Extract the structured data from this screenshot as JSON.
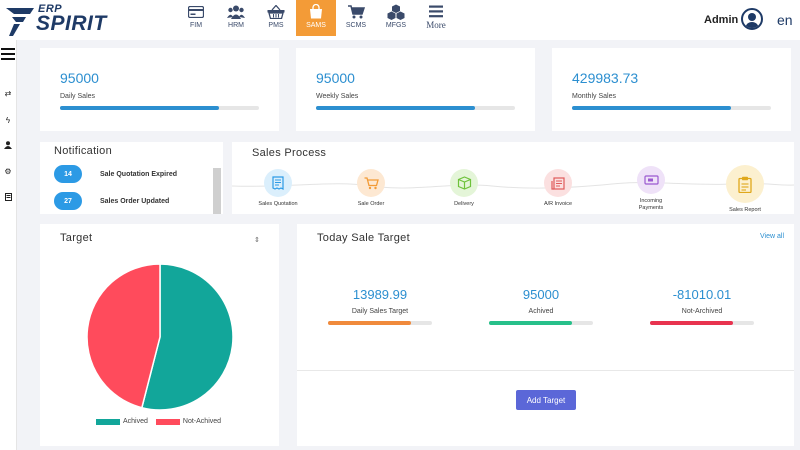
{
  "brand": {
    "erp": "ERP",
    "name": "SPIRIT"
  },
  "nav": [
    {
      "label": "FIM",
      "icon": "card-icon"
    },
    {
      "label": "HRM",
      "icon": "users-icon"
    },
    {
      "label": "PMS",
      "icon": "basket-icon"
    },
    {
      "label": "SAMS",
      "icon": "bag-icon",
      "active": true
    },
    {
      "label": "SCMS",
      "icon": "cart-icon"
    },
    {
      "label": "MFGS",
      "icon": "boxes-icon"
    },
    {
      "label": "More",
      "icon": "menu-icon"
    }
  ],
  "header": {
    "user": "Admin",
    "language": "en"
  },
  "stats": [
    {
      "value": "95000",
      "label": "Daily Sales",
      "progress": 0.8
    },
    {
      "value": "95000",
      "label": "Weekly Sales",
      "progress": 0.8
    },
    {
      "value": "429983.73",
      "label": "Monthly Sales",
      "progress": 0.8
    }
  ],
  "notification": {
    "title": "Notification",
    "items": [
      {
        "count": "14",
        "text": "Sale Quotation Expired"
      },
      {
        "count": "27",
        "text": "Sales Order Updated"
      }
    ]
  },
  "sales_process": {
    "title": "Sales Process",
    "steps": [
      {
        "label": "Sales Quotation",
        "icon": "receipt-icon",
        "color": "#2c9ae5",
        "bg": "#dbeffc"
      },
      {
        "label": "Sale Order",
        "icon": "cart-icon",
        "color": "#f39b37",
        "bg": "#fde8d2"
      },
      {
        "label": "Delivery",
        "icon": "package-icon",
        "color": "#6ec23a",
        "bg": "#e4f5d8"
      },
      {
        "label": "A/R Invoice",
        "icon": "invoice-icon",
        "color": "#e05a5a",
        "bg": "#fbe0e0"
      },
      {
        "label": "Incoming Payments",
        "icon": "payment-icon",
        "color": "#9b59d0",
        "bg": "#efe2f8"
      },
      {
        "label": "Sales Report",
        "icon": "clipboard-icon",
        "color": "#e0a81c",
        "bg": "#fcf0cf"
      }
    ]
  },
  "target": {
    "title": "Target",
    "chart_data": {
      "type": "pie",
      "labels": [
        "Achived",
        "Not-Achived"
      ],
      "values": [
        54,
        46
      ],
      "colors": [
        "#12a69a",
        "#ff4b5c"
      ],
      "legend": "bottom"
    }
  },
  "today_sale_target": {
    "title": "Today Sale Target",
    "view_all": "View all",
    "items": [
      {
        "value": "13989.99",
        "label": "Daily Sales Target",
        "progress": 0.8,
        "color": "#f08a3c"
      },
      {
        "value": "95000",
        "label": "Achived",
        "progress": 0.8,
        "color": "#27c08a"
      },
      {
        "value": "-81010.01",
        "label": "Not-Archived",
        "progress": 0.8,
        "color": "#e8334f"
      }
    ],
    "add_button": "Add Target"
  }
}
